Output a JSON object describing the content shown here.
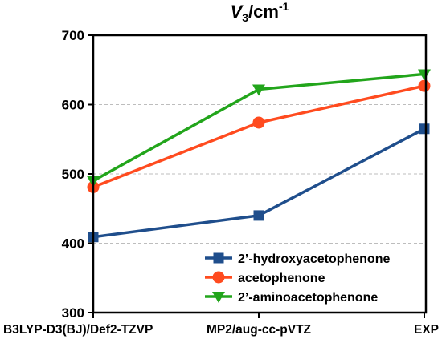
{
  "chart_data": {
    "type": "line",
    "title": {
      "symbol": "V",
      "subscript": "3",
      "unit": "/cm",
      "superscript": "-1"
    },
    "categories": [
      "B3LYP-D3(BJ)/Def2-TZVP",
      "MP2/aug-cc-pVTZ",
      "EXP"
    ],
    "ylim": [
      300,
      700
    ],
    "yticks": [
      300,
      400,
      500,
      600,
      700
    ],
    "grid": {
      "horizontal": true,
      "style": "dashed"
    },
    "legend_position": "bottom-right",
    "series": [
      {
        "name": "2’-hydroxyacetophenone",
        "values": [
          409,
          440,
          565
        ],
        "color": "#1f4e8c",
        "marker": "square"
      },
      {
        "name": "acetophenone",
        "values": [
          481,
          574,
          627
        ],
        "color": "#ff4b1f",
        "marker": "circle"
      },
      {
        "name": "2’-aminoacetophenone",
        "values": [
          490,
          622,
          644
        ],
        "color": "#22a51b",
        "marker": "triangle-down"
      }
    ]
  }
}
